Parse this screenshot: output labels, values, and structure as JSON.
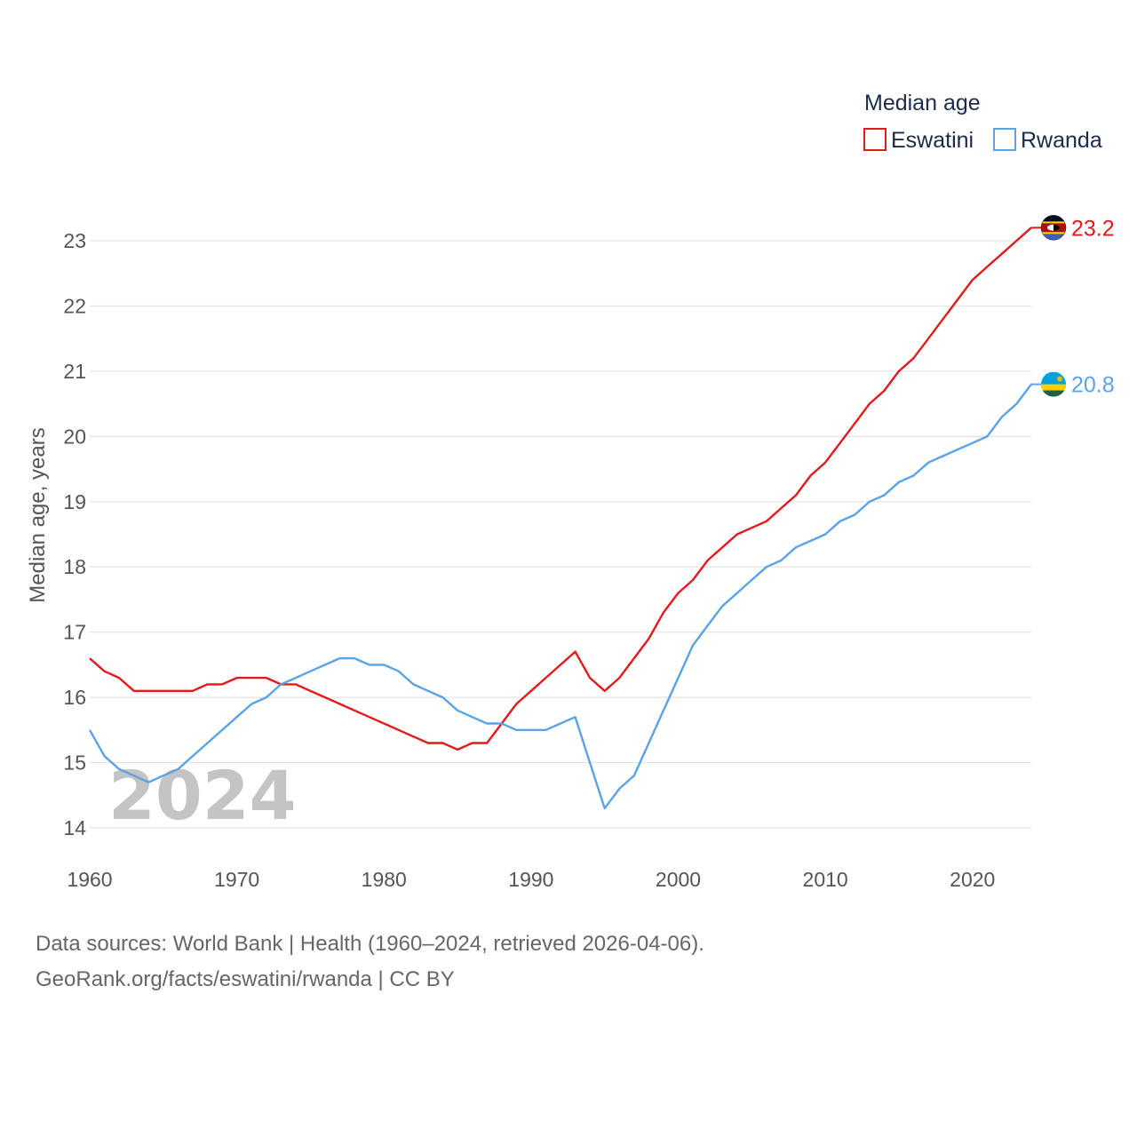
{
  "chart_data": {
    "type": "line",
    "title": "",
    "xlabel": "",
    "ylabel": "Median age, years",
    "legend_title": "Median age",
    "legend_position": "top-right",
    "year_label": "2024",
    "xlim": [
      1960,
      2024
    ],
    "ylim": [
      14,
      23.3
    ],
    "x_ticks": [
      1960,
      1970,
      1980,
      1990,
      2000,
      2010,
      2020
    ],
    "y_ticks": [
      14,
      15,
      16,
      17,
      18,
      19,
      20,
      21,
      22,
      23
    ],
    "grid": true,
    "x": [
      1960,
      1961,
      1962,
      1963,
      1964,
      1965,
      1966,
      1967,
      1968,
      1969,
      1970,
      1971,
      1972,
      1973,
      1974,
      1975,
      1976,
      1977,
      1978,
      1979,
      1980,
      1981,
      1982,
      1983,
      1984,
      1985,
      1986,
      1987,
      1988,
      1989,
      1990,
      1991,
      1992,
      1993,
      1994,
      1995,
      1996,
      1997,
      1998,
      1999,
      2000,
      2001,
      2002,
      2003,
      2004,
      2005,
      2006,
      2007,
      2008,
      2009,
      2010,
      2011,
      2012,
      2013,
      2014,
      2015,
      2016,
      2017,
      2018,
      2019,
      2020,
      2021,
      2022,
      2023,
      2024
    ],
    "series": [
      {
        "name": "Eswatini",
        "color": "#e31a1c",
        "end_label": "23.2",
        "values": [
          16.6,
          16.4,
          16.3,
          16.1,
          16.1,
          16.1,
          16.1,
          16.1,
          16.2,
          16.2,
          16.3,
          16.3,
          16.3,
          16.2,
          16.2,
          16.1,
          16.0,
          15.9,
          15.8,
          15.7,
          15.6,
          15.5,
          15.4,
          15.3,
          15.3,
          15.2,
          15.3,
          15.3,
          15.6,
          15.9,
          16.1,
          16.3,
          16.5,
          16.7,
          16.3,
          16.1,
          16.3,
          16.6,
          16.9,
          17.3,
          17.6,
          17.8,
          18.1,
          18.3,
          18.5,
          18.6,
          18.7,
          18.9,
          19.1,
          19.4,
          19.6,
          19.9,
          20.2,
          20.5,
          20.7,
          21.0,
          21.2,
          21.5,
          21.8,
          22.1,
          22.4,
          22.6,
          22.8,
          23.0,
          23.2
        ]
      },
      {
        "name": "Rwanda",
        "color": "#5ba3e6",
        "end_label": "20.8",
        "values": [
          15.5,
          15.1,
          14.9,
          14.8,
          14.7,
          14.8,
          14.9,
          15.1,
          15.3,
          15.5,
          15.7,
          15.9,
          16.0,
          16.2,
          16.3,
          16.4,
          16.5,
          16.6,
          16.6,
          16.5,
          16.5,
          16.4,
          16.2,
          16.1,
          16.0,
          15.8,
          15.7,
          15.6,
          15.6,
          15.5,
          15.5,
          15.5,
          15.6,
          15.7,
          15.0,
          14.3,
          14.6,
          14.8,
          15.3,
          15.8,
          16.3,
          16.8,
          17.1,
          17.4,
          17.6,
          17.8,
          18.0,
          18.1,
          18.3,
          18.4,
          18.5,
          18.7,
          18.8,
          19.0,
          19.1,
          19.3,
          19.4,
          19.6,
          19.7,
          19.8,
          19.9,
          20.0,
          20.3,
          20.5,
          20.8
        ]
      }
    ]
  },
  "source": {
    "line1": "Data sources: World Bank | Health (1960–2024, retrieved 2026-04-06).",
    "line2": "GeoRank.org/facts/eswatini/rwanda | CC BY"
  },
  "icons": {
    "eswatini_flag": "eswatini-flag-icon",
    "rwanda_flag": "rwanda-flag-icon"
  }
}
